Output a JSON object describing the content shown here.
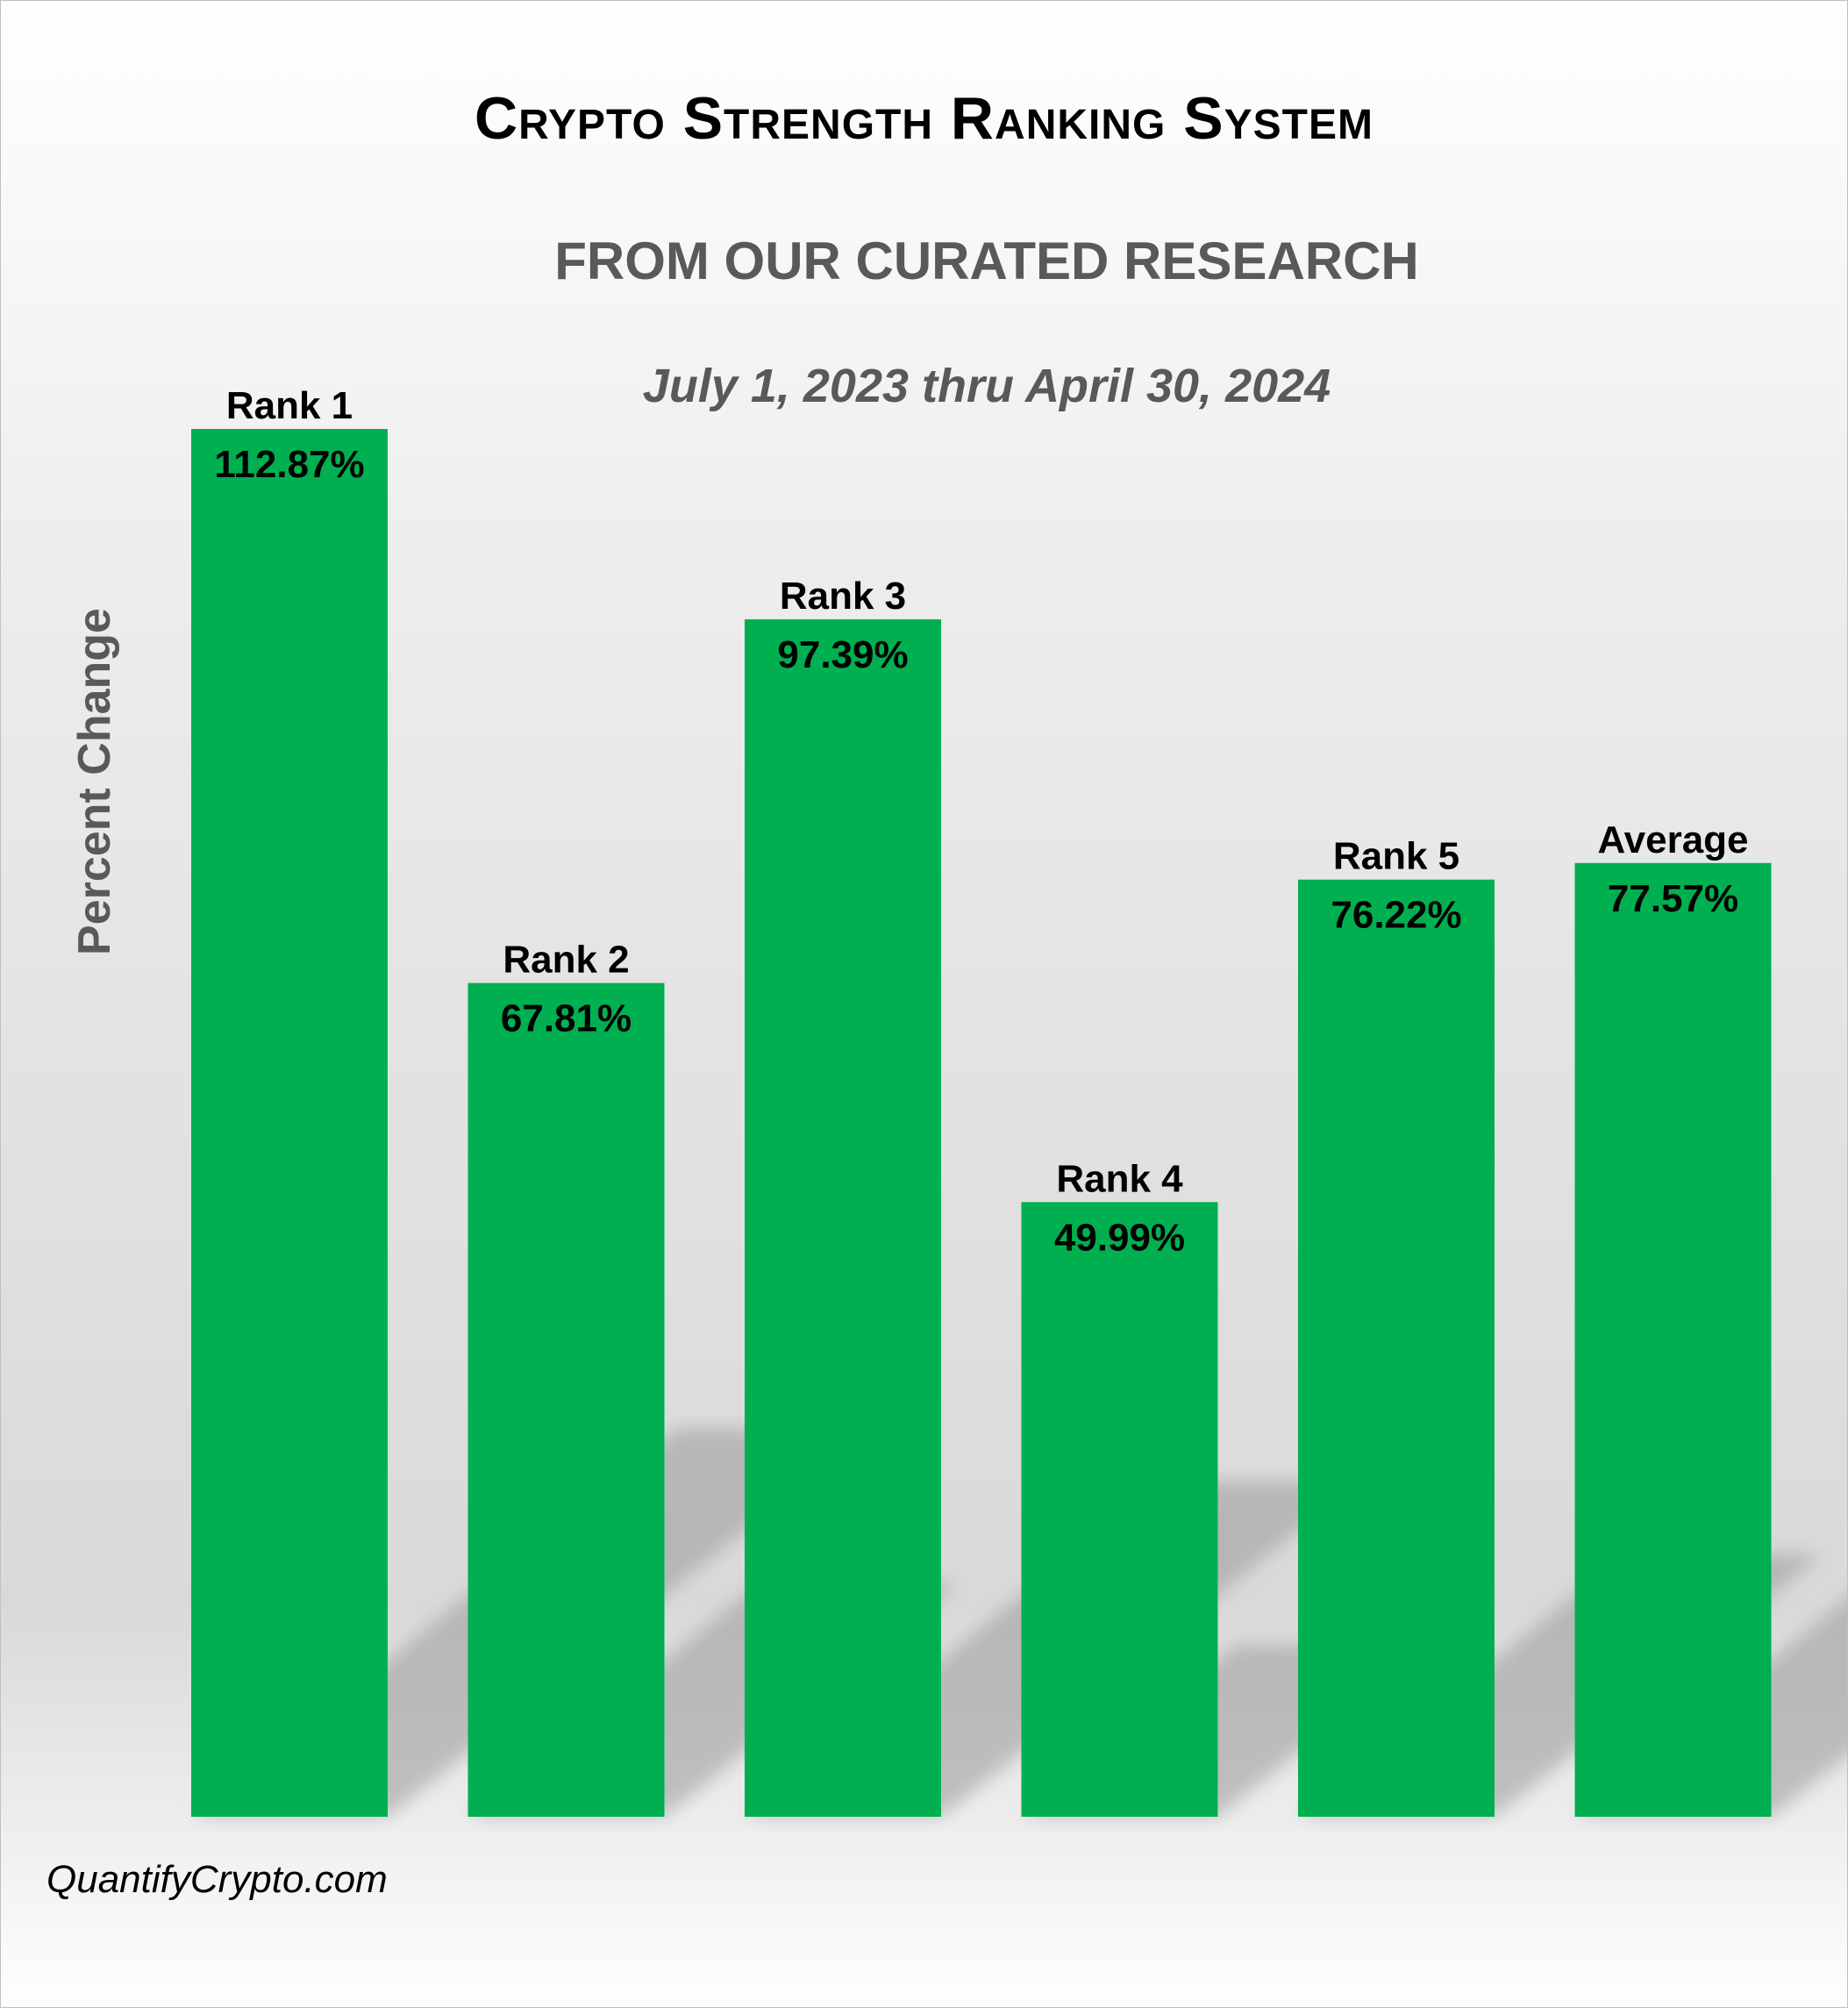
{
  "chart_data": {
    "type": "bar",
    "title": "Crypto Strength Ranking System",
    "subtitle": "FROM OUR CURATED RESEARCH",
    "period": "July 1, 2023 thru April 30, 2024",
    "ylabel": "Percent Change",
    "categories": [
      "Rank 1",
      "Rank 2",
      "Rank 3",
      "Rank 4",
      "Rank 5",
      "Average"
    ],
    "values": [
      112.87,
      67.81,
      97.39,
      49.99,
      76.22,
      77.57
    ],
    "value_labels": [
      "112.87%",
      "67.81%",
      "97.39%",
      "49.99%",
      "76.22%",
      "77.57%"
    ],
    "ylim": [
      0,
      112.87
    ],
    "grid": false,
    "legend": "none",
    "bar_color": "#00b050"
  },
  "footer": {
    "credit": "QuantifyCrypto.com"
  }
}
